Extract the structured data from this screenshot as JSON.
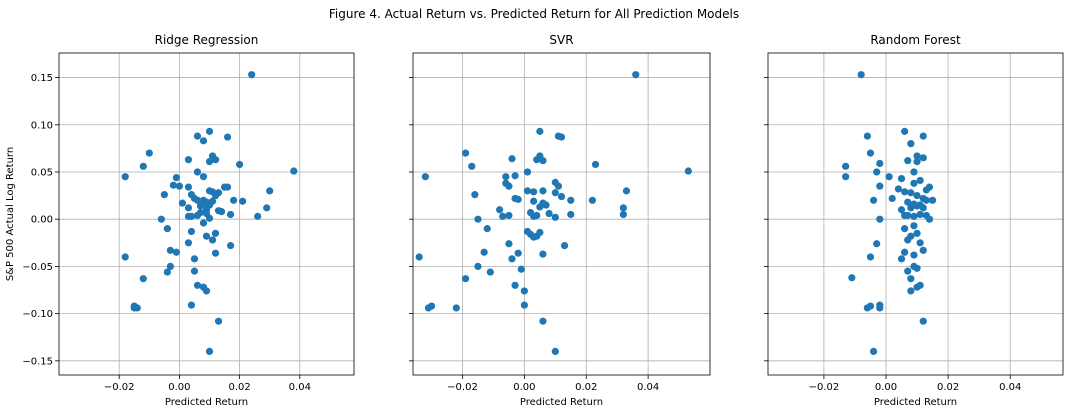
{
  "figure_title": "Figure 4. Actual Return vs. Predicted Return for All Prediction Models",
  "colors": {
    "marker": "#1f77b4",
    "grid": "#b0b0b0"
  },
  "chart_data": [
    {
      "type": "scatter",
      "title": "Ridge Regression",
      "xlabel": "Predicted Return",
      "ylabel": "S&P 500 Actual Log Return",
      "xlim": [
        -0.04,
        0.058
      ],
      "ylim": [
        -0.165,
        0.176
      ],
      "x_ticks": [
        -0.02,
        0.0,
        0.02,
        0.04
      ],
      "x_tick_labels": [
        "−0.02",
        "0.00",
        "0.02",
        "0.04"
      ],
      "y_ticks": [
        -0.15,
        -0.1,
        -0.05,
        0.0,
        0.05,
        0.1,
        0.15
      ],
      "y_tick_labels": [
        "−0.15",
        "−0.10",
        "−0.05",
        "0.00",
        "0.05",
        "0.10",
        "0.15"
      ],
      "grid": true,
      "points": [
        [
          0.024,
          0.153
        ],
        [
          0.038,
          0.051
        ],
        [
          -0.01,
          0.07
        ],
        [
          -0.012,
          0.056
        ],
        [
          -0.018,
          0.045
        ],
        [
          -0.018,
          -0.04
        ],
        [
          -0.015,
          -0.092
        ],
        [
          -0.014,
          -0.094
        ],
        [
          -0.015,
          -0.094
        ],
        [
          -0.012,
          -0.063
        ],
        [
          0.01,
          0.093
        ],
        [
          0.006,
          0.088
        ],
        [
          0.008,
          0.083
        ],
        [
          0.016,
          0.087
        ],
        [
          0.011,
          0.067
        ],
        [
          0.01,
          0.061
        ],
        [
          0.012,
          0.063
        ],
        [
          0.003,
          0.063
        ],
        [
          0.02,
          0.058
        ],
        [
          0.006,
          0.05
        ],
        [
          0.008,
          0.045
        ],
        [
          -0.001,
          0.044
        ],
        [
          -0.002,
          0.036
        ],
        [
          0.0,
          0.035
        ],
        [
          0.003,
          0.034
        ],
        [
          0.015,
          0.034
        ],
        [
          0.016,
          0.034
        ],
        [
          -0.005,
          0.026
        ],
        [
          0.004,
          0.026
        ],
        [
          0.01,
          0.03
        ],
        [
          0.011,
          0.029
        ],
        [
          0.013,
          0.028
        ],
        [
          0.012,
          0.025
        ],
        [
          0.005,
          0.022
        ],
        [
          0.006,
          0.02
        ],
        [
          0.008,
          0.02
        ],
        [
          0.009,
          0.018
        ],
        [
          0.009,
          0.016
        ],
        [
          0.01,
          0.015
        ],
        [
          0.007,
          0.014
        ],
        [
          0.011,
          0.019
        ],
        [
          0.018,
          0.02
        ],
        [
          0.021,
          0.019
        ],
        [
          0.001,
          0.017
        ],
        [
          0.003,
          0.012
        ],
        [
          0.007,
          0.007
        ],
        [
          0.009,
          0.01
        ],
        [
          0.013,
          0.009
        ],
        [
          0.014,
          0.008
        ],
        [
          0.029,
          0.012
        ],
        [
          0.03,
          0.03
        ],
        [
          0.017,
          0.005
        ],
        [
          0.026,
          0.003
        ],
        [
          0.003,
          0.003
        ],
        [
          0.004,
          0.003
        ],
        [
          0.006,
          0.004
        ],
        [
          0.009,
          0.006
        ],
        [
          0.01,
          0.001
        ],
        [
          -0.006,
          0.0
        ],
        [
          -0.004,
          -0.01
        ],
        [
          0.004,
          -0.013
        ],
        [
          0.008,
          -0.004
        ],
        [
          0.009,
          -0.018
        ],
        [
          0.011,
          -0.022
        ],
        [
          0.012,
          -0.015
        ],
        [
          0.017,
          -0.028
        ],
        [
          -0.003,
          -0.033
        ],
        [
          -0.001,
          -0.035
        ],
        [
          0.003,
          -0.025
        ],
        [
          0.005,
          -0.042
        ],
        [
          0.012,
          -0.036
        ],
        [
          -0.003,
          -0.05
        ],
        [
          -0.004,
          -0.056
        ],
        [
          0.005,
          -0.055
        ],
        [
          0.008,
          -0.072
        ],
        [
          0.006,
          -0.07
        ],
        [
          0.009,
          -0.076
        ],
        [
          0.004,
          -0.091
        ],
        [
          0.013,
          -0.108
        ],
        [
          0.01,
          -0.14
        ]
      ]
    },
    {
      "type": "scatter",
      "title": "SVR",
      "xlabel": "Predicted Return",
      "ylabel": "",
      "xlim": [
        -0.036,
        0.06
      ],
      "ylim": [
        -0.165,
        0.176
      ],
      "x_ticks": [
        -0.02,
        0.0,
        0.02,
        0.04
      ],
      "x_tick_labels": [
        "−0.02",
        "0.00",
        "0.02",
        "0.04"
      ],
      "y_ticks": [
        -0.15,
        -0.1,
        -0.05,
        0.0,
        0.05,
        0.1,
        0.15
      ],
      "y_tick_labels": [
        "",
        "",
        "",
        "",
        "",
        "",
        ""
      ],
      "grid": true,
      "points": [
        [
          0.036,
          0.153
        ],
        [
          0.053,
          0.051
        ],
        [
          -0.019,
          0.07
        ],
        [
          -0.017,
          0.056
        ],
        [
          -0.032,
          0.045
        ],
        [
          -0.034,
          -0.04
        ],
        [
          -0.031,
          -0.094
        ],
        [
          -0.03,
          -0.092
        ],
        [
          -0.022,
          -0.094
        ],
        [
          -0.019,
          -0.063
        ],
        [
          0.005,
          0.093
        ],
        [
          0.011,
          0.088
        ],
        [
          0.012,
          0.087
        ],
        [
          0.005,
          0.067
        ],
        [
          0.004,
          0.063
        ],
        [
          -0.004,
          0.064
        ],
        [
          0.006,
          0.062
        ],
        [
          0.023,
          0.058
        ],
        [
          0.001,
          0.05
        ],
        [
          -0.006,
          0.045
        ],
        [
          -0.003,
          0.046
        ],
        [
          -0.006,
          0.038
        ],
        [
          -0.005,
          0.035
        ],
        [
          0.01,
          0.039
        ],
        [
          0.011,
          0.035
        ],
        [
          0.033,
          0.03
        ],
        [
          -0.016,
          0.026
        ],
        [
          0.001,
          0.03
        ],
        [
          0.003,
          0.029
        ],
        [
          0.006,
          0.03
        ],
        [
          0.01,
          0.028
        ],
        [
          0.012,
          0.024
        ],
        [
          0.015,
          0.02
        ],
        [
          0.022,
          0.02
        ],
        [
          -0.003,
          0.022
        ],
        [
          -0.002,
          0.021
        ],
        [
          0.003,
          0.019
        ],
        [
          0.006,
          0.017
        ],
        [
          0.005,
          0.013
        ],
        [
          0.007,
          0.015
        ],
        [
          0.032,
          0.012
        ],
        [
          0.032,
          0.005
        ],
        [
          0.015,
          0.005
        ],
        [
          -0.008,
          0.01
        ],
        [
          -0.005,
          0.004
        ],
        [
          -0.007,
          0.003
        ],
        [
          0.002,
          0.007
        ],
        [
          0.004,
          0.004
        ],
        [
          0.008,
          0.006
        ],
        [
          0.01,
          0.002
        ],
        [
          0.003,
          0.003
        ],
        [
          -0.015,
          0.0
        ],
        [
          -0.012,
          -0.01
        ],
        [
          0.001,
          -0.013
        ],
        [
          0.002,
          -0.016
        ],
        [
          0.003,
          -0.019
        ],
        [
          0.004,
          -0.018
        ],
        [
          0.005,
          -0.014
        ],
        [
          0.013,
          -0.028
        ],
        [
          -0.005,
          -0.026
        ],
        [
          -0.002,
          -0.036
        ],
        [
          -0.013,
          -0.035
        ],
        [
          -0.004,
          -0.042
        ],
        [
          0.006,
          -0.037
        ],
        [
          -0.015,
          -0.05
        ],
        [
          -0.011,
          -0.056
        ],
        [
          -0.001,
          -0.053
        ],
        [
          -0.003,
          -0.07
        ],
        [
          0.0,
          -0.076
        ],
        [
          0.0,
          -0.091
        ],
        [
          0.006,
          -0.108
        ],
        [
          0.01,
          -0.14
        ]
      ]
    },
    {
      "type": "scatter",
      "title": "Random Forest",
      "xlabel": "Predicted Return",
      "ylabel": "",
      "xlim": [
        -0.038,
        0.057
      ],
      "ylim": [
        -0.165,
        0.176
      ],
      "x_ticks": [
        -0.02,
        0.0,
        0.02,
        0.04
      ],
      "x_tick_labels": [
        "−0.02",
        "0.00",
        "0.02",
        "0.04"
      ],
      "y_ticks": [
        -0.15,
        -0.1,
        -0.05,
        0.0,
        0.05,
        0.1,
        0.15
      ],
      "y_tick_labels": [
        "",
        "",
        "",
        "",
        "",
        "",
        ""
      ],
      "grid": true,
      "points": [
        [
          -0.008,
          0.153
        ],
        [
          -0.006,
          0.088
        ],
        [
          0.006,
          0.093
        ],
        [
          0.012,
          0.088
        ],
        [
          0.008,
          0.08
        ],
        [
          -0.005,
          0.07
        ],
        [
          0.01,
          0.067
        ],
        [
          0.012,
          0.065
        ],
        [
          0.01,
          0.061
        ],
        [
          0.007,
          0.062
        ],
        [
          -0.013,
          0.056
        ],
        [
          -0.002,
          0.059
        ],
        [
          -0.003,
          0.05
        ],
        [
          0.009,
          0.05
        ],
        [
          -0.013,
          0.045
        ],
        [
          0.001,
          0.045
        ],
        [
          0.005,
          0.043
        ],
        [
          0.011,
          0.041
        ],
        [
          0.009,
          0.038
        ],
        [
          -0.002,
          0.035
        ],
        [
          0.004,
          0.032
        ],
        [
          0.014,
          0.034
        ],
        [
          0.013,
          0.031
        ],
        [
          0.006,
          0.029
        ],
        [
          0.008,
          0.028
        ],
        [
          0.01,
          0.025
        ],
        [
          0.012,
          0.022
        ],
        [
          0.013,
          0.02
        ],
        [
          0.015,
          0.02
        ],
        [
          -0.004,
          0.02
        ],
        [
          0.002,
          0.022
        ],
        [
          0.007,
          0.018
        ],
        [
          0.009,
          0.016
        ],
        [
          0.01,
          0.014
        ],
        [
          0.011,
          0.015
        ],
        [
          0.012,
          0.012
        ],
        [
          0.008,
          0.012
        ],
        [
          0.005,
          0.01
        ],
        [
          0.006,
          0.004
        ],
        [
          0.007,
          0.004
        ],
        [
          0.009,
          0.003
        ],
        [
          0.011,
          0.005
        ],
        [
          0.013,
          0.004
        ],
        [
          0.014,
          0.0
        ],
        [
          -0.002,
          0.0
        ],
        [
          0.009,
          -0.007
        ],
        [
          0.006,
          -0.01
        ],
        [
          0.01,
          -0.015
        ],
        [
          0.008,
          -0.018
        ],
        [
          0.007,
          -0.022
        ],
        [
          0.011,
          -0.025
        ],
        [
          0.012,
          -0.033
        ],
        [
          -0.003,
          -0.026
        ],
        [
          0.006,
          -0.035
        ],
        [
          0.005,
          -0.042
        ],
        [
          0.009,
          -0.038
        ],
        [
          -0.005,
          -0.04
        ],
        [
          0.009,
          -0.05
        ],
        [
          0.007,
          -0.055
        ],
        [
          0.01,
          -0.052
        ],
        [
          -0.011,
          -0.062
        ],
        [
          0.008,
          -0.063
        ],
        [
          0.011,
          -0.07
        ],
        [
          0.01,
          -0.072
        ],
        [
          0.008,
          -0.076
        ],
        [
          -0.006,
          -0.094
        ],
        [
          -0.005,
          -0.092
        ],
        [
          -0.002,
          -0.091
        ],
        [
          -0.002,
          -0.094
        ],
        [
          0.012,
          -0.108
        ],
        [
          -0.004,
          -0.14
        ]
      ]
    }
  ]
}
